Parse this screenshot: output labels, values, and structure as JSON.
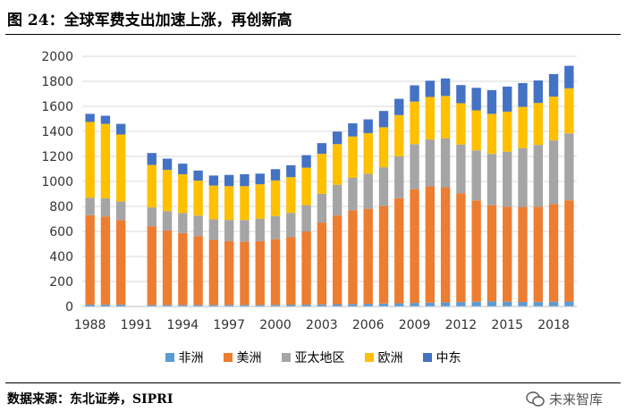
{
  "header": {
    "title": "图 24：全球军费支出加速上涨，再创新高"
  },
  "footer": {
    "source": "数据来源：东北证券，SIPRI",
    "watermark": "未来智库"
  },
  "colors": {
    "africa": "#5B9BD5",
    "americas": "#ED7D31",
    "asia": "#A5A5A5",
    "europe": "#FFC000",
    "mideast": "#4472C4"
  },
  "chart_data": {
    "type": "bar",
    "stacked": true,
    "title": "",
    "xlabel": "",
    "ylabel": "",
    "ylim": [
      0,
      2000
    ],
    "yticks": [
      0,
      200,
      400,
      600,
      800,
      1000,
      1200,
      1400,
      1600,
      1800,
      2000
    ],
    "categories": [
      "1988",
      "1989",
      "1990",
      "1991",
      "1992",
      "1993",
      "1994",
      "1995",
      "1996",
      "1997",
      "1998",
      "1999",
      "2000",
      "2001",
      "2002",
      "2003",
      "2004",
      "2005",
      "2006",
      "2007",
      "2008",
      "2009",
      "2010",
      "2011",
      "2012",
      "2013",
      "2014",
      "2015",
      "2016",
      "2017",
      "2018",
      "2019"
    ],
    "xtick_labels": [
      "1988",
      "1991",
      "1994",
      "1997",
      "2000",
      "2003",
      "2006",
      "2009",
      "2012",
      "2015",
      "2018"
    ],
    "series": [
      {
        "name": "非洲",
        "values": [
          15,
          15,
          15,
          null,
          12,
          12,
          12,
          12,
          12,
          12,
          12,
          12,
          13,
          14,
          15,
          16,
          18,
          19,
          21,
          23,
          25,
          28,
          30,
          33,
          35,
          38,
          40,
          38,
          36,
          37,
          38,
          39
        ]
      },
      {
        "name": "美洲",
        "values": [
          715,
          705,
          675,
          null,
          630,
          595,
          575,
          550,
          520,
          510,
          505,
          510,
          525,
          540,
          585,
          655,
          710,
          750,
          760,
          780,
          840,
          910,
          930,
          920,
          870,
          810,
          770,
          760,
          760,
          760,
          780,
          810
        ]
      },
      {
        "name": "亚太地区",
        "values": [
          140,
          145,
          150,
          null,
          150,
          155,
          160,
          165,
          165,
          170,
          175,
          180,
          185,
          195,
          210,
          230,
          245,
          260,
          280,
          310,
          335,
          360,
          375,
          390,
          390,
          400,
          410,
          440,
          470,
          495,
          510,
          535
        ]
      },
      {
        "name": "欧洲",
        "values": [
          605,
          595,
          535,
          null,
          340,
          330,
          310,
          280,
          270,
          270,
          270,
          275,
          285,
          285,
          300,
          320,
          325,
          330,
          325,
          320,
          330,
          340,
          340,
          340,
          330,
          320,
          320,
          320,
          330,
          335,
          350,
          360
        ]
      },
      {
        "name": "中东",
        "values": [
          65,
          65,
          85,
          null,
          95,
          90,
          85,
          80,
          80,
          90,
          95,
          85,
          90,
          95,
          100,
          85,
          100,
          105,
          110,
          130,
          130,
          130,
          130,
          140,
          145,
          180,
          190,
          200,
          190,
          180,
          180,
          180
        ]
      }
    ]
  }
}
